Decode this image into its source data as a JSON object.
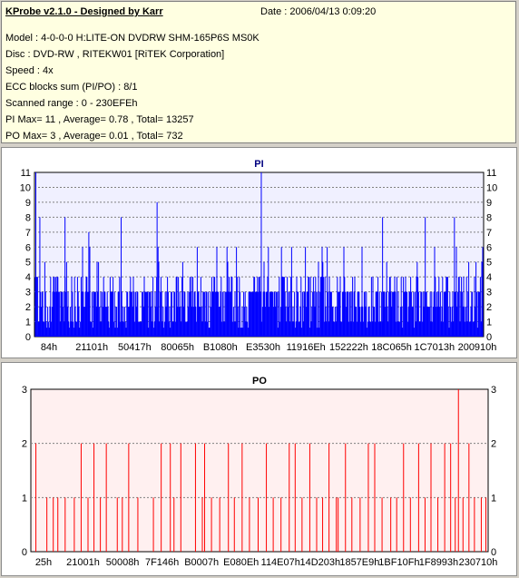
{
  "header": {
    "title": "KProbe v2.1.0 - Designed by Karr",
    "date": "Date : 2006/04/13 0:09:20",
    "lines": [
      "Model : 4-0-0-0 H:LITE-ON DVDRW SHM-165P6S MS0K",
      "Disc : DVD-RW , RITEKW01 [RiTEK Corporation]",
      "Speed : 4x",
      "ECC blocks sum (PI/PO) : 8/1",
      "Scanned range : 0 - 230EFEh",
      "PI Max= 11 , Average= 0.78 , Total= 13257",
      "PO Max= 3 , Average= 0.01 , Total= 732"
    ]
  },
  "colors": {
    "pi_bars": "#0000ff",
    "po_bars": "#ff0000",
    "pi_title": "#000080",
    "plot_bg_pi": "#f0f0ff",
    "plot_bg_po": "#fff0f0"
  },
  "chart_data": [
    {
      "type": "bar",
      "title": "PI",
      "ylim": [
        0,
        11
      ],
      "yticks": [
        0,
        1,
        2,
        3,
        4,
        5,
        6,
        7,
        8,
        9,
        10,
        11
      ],
      "x_tick_labels": [
        "84h",
        "21101h",
        "50417h",
        "80065h",
        "B1080h",
        "E3530h",
        "11916Eh",
        "152222h",
        "18C065h",
        "1C7013h",
        "200910h"
      ],
      "grid": true,
      "max": 11,
      "average": 0.78,
      "peaks": [
        {
          "x": 0.003,
          "value": 11
        },
        {
          "x": 0.012,
          "value": 8
        },
        {
          "x": 0.068,
          "value": 8
        },
        {
          "x": 0.121,
          "value": 7
        },
        {
          "x": 0.193,
          "value": 8
        },
        {
          "x": 0.273,
          "value": 9
        },
        {
          "x": 0.505,
          "value": 11
        },
        {
          "x": 0.775,
          "value": 8
        },
        {
          "x": 0.87,
          "value": 8
        },
        {
          "x": 0.935,
          "value": 8
        },
        {
          "x": 0.998,
          "value": 6
        }
      ]
    },
    {
      "type": "bar",
      "title": "PO",
      "ylim": [
        0,
        3
      ],
      "yticks": [
        0,
        1,
        2,
        3
      ],
      "x_tick_labels": [
        "25h",
        "21001h",
        "50008h",
        "7F146h",
        "B0007h",
        "E080Eh",
        "114E07h",
        "14D203h",
        "1857E9h",
        "1BF10Fh",
        "1F8993h",
        "230710h"
      ],
      "grid": true,
      "max": 3,
      "average": 0.01,
      "bars": [
        {
          "x": 0.011,
          "value": 2
        },
        {
          "x": 0.035,
          "value": 1
        },
        {
          "x": 0.049,
          "value": 1
        },
        {
          "x": 0.059,
          "value": 1
        },
        {
          "x": 0.075,
          "value": 1
        },
        {
          "x": 0.095,
          "value": 1
        },
        {
          "x": 0.11,
          "value": 2
        },
        {
          "x": 0.125,
          "value": 1
        },
        {
          "x": 0.138,
          "value": 2
        },
        {
          "x": 0.152,
          "value": 1
        },
        {
          "x": 0.165,
          "value": 2
        },
        {
          "x": 0.189,
          "value": 1
        },
        {
          "x": 0.2,
          "value": 1
        },
        {
          "x": 0.214,
          "value": 2
        },
        {
          "x": 0.234,
          "value": 1
        },
        {
          "x": 0.268,
          "value": 1
        },
        {
          "x": 0.285,
          "value": 2
        },
        {
          "x": 0.305,
          "value": 2
        },
        {
          "x": 0.313,
          "value": 1
        },
        {
          "x": 0.328,
          "value": 2
        },
        {
          "x": 0.36,
          "value": 2
        },
        {
          "x": 0.375,
          "value": 1
        },
        {
          "x": 0.38,
          "value": 2
        },
        {
          "x": 0.395,
          "value": 1
        },
        {
          "x": 0.413,
          "value": 1
        },
        {
          "x": 0.432,
          "value": 2
        },
        {
          "x": 0.445,
          "value": 1
        },
        {
          "x": 0.462,
          "value": 2
        },
        {
          "x": 0.478,
          "value": 1
        },
        {
          "x": 0.497,
          "value": 1
        },
        {
          "x": 0.515,
          "value": 2
        },
        {
          "x": 0.53,
          "value": 1
        },
        {
          "x": 0.547,
          "value": 1
        },
        {
          "x": 0.565,
          "value": 2
        },
        {
          "x": 0.578,
          "value": 2
        },
        {
          "x": 0.593,
          "value": 1
        },
        {
          "x": 0.61,
          "value": 2
        },
        {
          "x": 0.625,
          "value": 1
        },
        {
          "x": 0.638,
          "value": 1
        },
        {
          "x": 0.652,
          "value": 2
        },
        {
          "x": 0.668,
          "value": 1
        },
        {
          "x": 0.672,
          "value": 1
        },
        {
          "x": 0.688,
          "value": 2
        },
        {
          "x": 0.702,
          "value": 1
        },
        {
          "x": 0.72,
          "value": 1
        },
        {
          "x": 0.738,
          "value": 2
        },
        {
          "x": 0.752,
          "value": 2
        },
        {
          "x": 0.768,
          "value": 1
        },
        {
          "x": 0.787,
          "value": 1
        },
        {
          "x": 0.8,
          "value": 1
        },
        {
          "x": 0.815,
          "value": 2
        },
        {
          "x": 0.83,
          "value": 1
        },
        {
          "x": 0.848,
          "value": 2
        },
        {
          "x": 0.862,
          "value": 1
        },
        {
          "x": 0.875,
          "value": 2
        },
        {
          "x": 0.89,
          "value": 1
        },
        {
          "x": 0.905,
          "value": 2
        },
        {
          "x": 0.918,
          "value": 2
        },
        {
          "x": 0.928,
          "value": 1
        },
        {
          "x": 0.935,
          "value": 3
        },
        {
          "x": 0.945,
          "value": 1
        },
        {
          "x": 0.958,
          "value": 2
        },
        {
          "x": 0.97,
          "value": 1
        },
        {
          "x": 0.985,
          "value": 1
        },
        {
          "x": 0.995,
          "value": 1
        }
      ]
    }
  ]
}
